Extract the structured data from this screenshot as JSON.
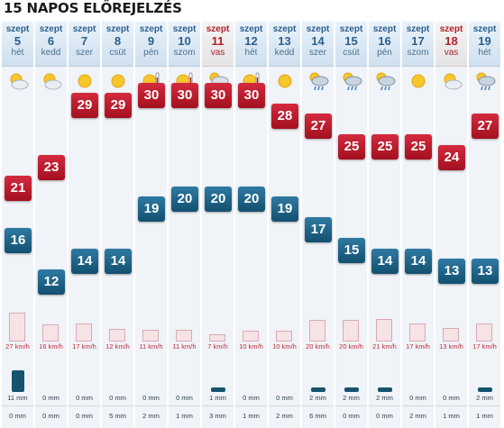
{
  "title": "15 NAPOS ELŐREJELZÉS",
  "colors": {
    "max": "#c01a2e",
    "min": "#1e6688",
    "header": "#2b5f8c",
    "weekend": "#b0202a",
    "wind": "#c02a3a",
    "rain": "#14546f"
  },
  "days": [
    {
      "month": "szept",
      "day": "5",
      "weekday": "hét",
      "icon": "sun-cloud-icon",
      "max": "21",
      "min": "16",
      "wind": "27 km/h",
      "wind_val": 27,
      "rain": "11 mm",
      "rain_val": 11,
      "snow": "0 mm",
      "weekend": false
    },
    {
      "month": "szept",
      "day": "6",
      "weekday": "kedd",
      "icon": "sun-cloud-icon",
      "max": "23",
      "min": "12",
      "wind": "16 km/h",
      "wind_val": 16,
      "rain": "0 mm",
      "rain_val": 0,
      "snow": "0 mm",
      "weekend": false
    },
    {
      "month": "szept",
      "day": "7",
      "weekday": "szer",
      "icon": "sun-icon",
      "max": "29",
      "min": "14",
      "wind": "17 km/h",
      "wind_val": 17,
      "rain": "0 mm",
      "rain_val": 0,
      "snow": "0 mm",
      "weekend": false
    },
    {
      "month": "szept",
      "day": "8",
      "weekday": "csüt",
      "icon": "sun-icon",
      "max": "29",
      "min": "14",
      "wind": "12 km/h",
      "wind_val": 12,
      "rain": "0 mm",
      "rain_val": 0,
      "snow": "5 mm",
      "weekend": false
    },
    {
      "month": "szept",
      "day": "9",
      "weekday": "pén",
      "icon": "hot-sun-icon",
      "max": "30",
      "min": "19",
      "wind": "11 km/h",
      "wind_val": 11,
      "rain": "0 mm",
      "rain_val": 0,
      "snow": "2 mm",
      "weekend": false
    },
    {
      "month": "szept",
      "day": "10",
      "weekday": "szom",
      "icon": "hot-sun-icon",
      "max": "30",
      "min": "20",
      "wind": "11 km/h",
      "wind_val": 11,
      "rain": "0 mm",
      "rain_val": 0,
      "snow": "1 mm",
      "weekend": false
    },
    {
      "month": "szept",
      "day": "11",
      "weekday": "vas",
      "icon": "storm-icon",
      "max": "30",
      "min": "20",
      "wind": "7 km/h",
      "wind_val": 7,
      "rain": "1 mm",
      "rain_val": 1,
      "snow": "3 mm",
      "weekend": true
    },
    {
      "month": "szept",
      "day": "12",
      "weekday": "hét",
      "icon": "hot-sun-icon",
      "max": "30",
      "min": "20",
      "wind": "10 km/h",
      "wind_val": 10,
      "rain": "0 mm",
      "rain_val": 0,
      "snow": "1 mm",
      "weekend": false
    },
    {
      "month": "szept",
      "day": "13",
      "weekday": "kedd",
      "icon": "sun-icon",
      "max": "28",
      "min": "19",
      "wind": "10 km/h",
      "wind_val": 10,
      "rain": "0 mm",
      "rain_val": 0,
      "snow": "2 mm",
      "weekend": false
    },
    {
      "month": "szept",
      "day": "14",
      "weekday": "szer",
      "icon": "rain-cloud-icon",
      "max": "27",
      "min": "17",
      "wind": "20 km/h",
      "wind_val": 20,
      "rain": "2 mm",
      "rain_val": 2,
      "snow": "6 mm",
      "weekend": false
    },
    {
      "month": "szept",
      "day": "15",
      "weekday": "csüt",
      "icon": "rain-cloud-icon",
      "max": "25",
      "min": "15",
      "wind": "20 km/h",
      "wind_val": 20,
      "rain": "2 mm",
      "rain_val": 2,
      "snow": "0 mm",
      "weekend": false
    },
    {
      "month": "szept",
      "day": "16",
      "weekday": "pén",
      "icon": "rain-cloud-icon",
      "max": "25",
      "min": "14",
      "wind": "21 km/h",
      "wind_val": 21,
      "rain": "2 mm",
      "rain_val": 2,
      "snow": "0 mm",
      "weekend": false
    },
    {
      "month": "szept",
      "day": "17",
      "weekday": "szom",
      "icon": "sun-icon",
      "max": "25",
      "min": "14",
      "wind": "17 km/h",
      "wind_val": 17,
      "rain": "0 mm",
      "rain_val": 0,
      "snow": "2 mm",
      "weekend": false
    },
    {
      "month": "szept",
      "day": "18",
      "weekday": "vas",
      "icon": "sun-cloud-icon",
      "max": "24",
      "min": "13",
      "wind": "13 km/h",
      "wind_val": 13,
      "rain": "0 mm",
      "rain_val": 0,
      "snow": "1 mm",
      "weekend": true
    },
    {
      "month": "szept",
      "day": "19",
      "weekday": "hét",
      "icon": "rain-cloud-icon",
      "max": "27",
      "min": "13",
      "wind": "17 km/h",
      "wind_val": 17,
      "rain": "2 mm",
      "rain_val": 2,
      "snow": "1 mm",
      "weekend": false
    }
  ]
}
